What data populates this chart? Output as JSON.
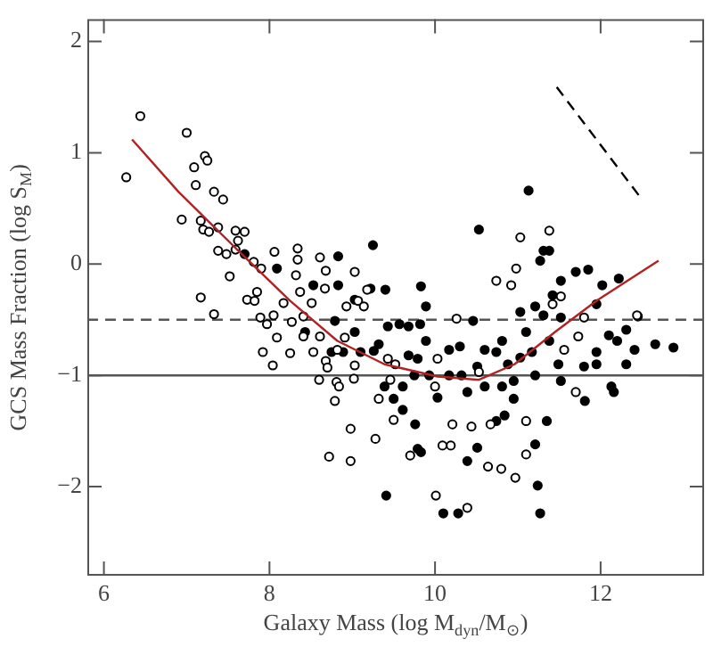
{
  "chart_data": {
    "type": "scatter",
    "xlabel": "Galaxy Mass (log M$_{dyn}$/M$_{⊙}$)",
    "ylabel": "GCS Mass Fraction (log S$_{M}$)",
    "xlim": [
      5.8,
      13.25
    ],
    "ylim": [
      -2.8,
      2.2
    ],
    "xticks": [
      6,
      8,
      10,
      12
    ],
    "yticks": [
      -2,
      -1,
      0,
      1,
      2
    ],
    "grid": false,
    "legend": false,
    "ref_lines": [
      {
        "axis": "y",
        "value": -0.5,
        "color": "#555555",
        "line_style": "dashed"
      },
      {
        "axis": "y",
        "value": -1,
        "color": "#555555",
        "line_style": "solid"
      }
    ],
    "series": [
      {
        "marker": "circle",
        "color": "#000000",
        "x": [
          6.27,
          6.44,
          7.0,
          6.94,
          7.09,
          7.11,
          7.22,
          7.25,
          7.17,
          7.2,
          7.27,
          7.33,
          7.44,
          7.38,
          7.38,
          7.48,
          7.59,
          7.59,
          7.7,
          7.62,
          7.17,
          7.33,
          7.52,
          7.73,
          7.82,
          7.85,
          7.81,
          7.9,
          7.89,
          7.97,
          8.06,
          8.05,
          8.09,
          7.92,
          8.04,
          8.17,
          8.25,
          8.27,
          8.34,
          8.34,
          8.32,
          8.37,
          8.41,
          8.41,
          8.53,
          8.51,
          8.61,
          8.68,
          8.67,
          8.61,
          8.68,
          8.7,
          8.6,
          8.81,
          8.79,
          8.84,
          8.72,
          8.98,
          8.98,
          9.03,
          9.03,
          9.02,
          9.28,
          9.32,
          9.43,
          9.46,
          9.52,
          9.5,
          9.07,
          9.14,
          9.18,
          8.93,
          8.82,
          8.91,
          9.7,
          10.0,
          10.03,
          10.09,
          10.19,
          10.01,
          10.21,
          10.26,
          10.39,
          10.44,
          10.74,
          10.64,
          10.67,
          10.8,
          10.92,
          10.97,
          11.03,
          10.98,
          11.1,
          11.38,
          11.42,
          11.52,
          11.56,
          11.7,
          11.73,
          11.8,
          12.44,
          11.1,
          10.53
        ],
        "values": [
          0.78,
          1.33,
          1.18,
          0.4,
          0.87,
          0.71,
          0.97,
          0.93,
          0.39,
          0.31,
          0.29,
          0.65,
          0.58,
          0.33,
          0.12,
          0.09,
          0.13,
          0.3,
          0.29,
          0.21,
          -0.3,
          -0.45,
          -0.11,
          -0.32,
          -0.33,
          -0.25,
          0.02,
          -0.04,
          -0.48,
          -0.54,
          0.11,
          -0.46,
          -0.66,
          -0.79,
          -0.91,
          -0.35,
          -0.8,
          -0.52,
          0.14,
          0.04,
          -0.1,
          -0.25,
          -0.47,
          -0.65,
          -0.79,
          -0.35,
          0.06,
          -0.06,
          -0.22,
          -0.65,
          -0.87,
          -0.93,
          -1.04,
          -1.06,
          -1.23,
          -1.1,
          -1.73,
          -1.48,
          -1.77,
          -0.07,
          -0.91,
          -1.03,
          -1.57,
          -1.21,
          -0.85,
          -1.04,
          -0.9,
          -1.4,
          -0.33,
          -0.38,
          -0.23,
          -0.38,
          -0.77,
          -0.66,
          -1.72,
          -1.1,
          -0.85,
          -1.63,
          -1.63,
          -2.08,
          -1.44,
          -0.49,
          -2.19,
          -1.46,
          -0.15,
          -1.82,
          -1.44,
          -1.84,
          -0.19,
          -1.92,
          0.24,
          -0.04,
          -1.71,
          0.3,
          -0.36,
          -0.29,
          -0.77,
          -1.15,
          -0.65,
          -0.48,
          -0.46,
          -1.41,
          -0.97
        ]
      },
      {
        "marker": "circle",
        "color": "#000000",
        "x": [
          7.7,
          8.09,
          8.53,
          8.83,
          9.25,
          8.83,
          8.79,
          8.43,
          8.75,
          9.03,
          9.22,
          9.4,
          9.43,
          9.57,
          9.68,
          9.82,
          9.83,
          9.89,
          9.26,
          9.39,
          9.5,
          9.61,
          9.68,
          9.79,
          9.89,
          9.93,
          10.03,
          10.17,
          10.3,
          10.32,
          10.39,
          10.46,
          10.51,
          10.53,
          10.6,
          10.74,
          10.81,
          10.88,
          10.95,
          11.03,
          11.1,
          11.13,
          11.17,
          11.21,
          11.27,
          11.31,
          11.38,
          11.21,
          11.31,
          11.42,
          11.52,
          11.7,
          11.85,
          12.02,
          12.22,
          11.95,
          12.1,
          12.2,
          12.31,
          12.41,
          12.45,
          12.66,
          12.88,
          11.81,
          12.13,
          12.16,
          11.52,
          11.35,
          11.21,
          11.24,
          11.27,
          10.39,
          10.51,
          10.28,
          10.1,
          9.41,
          9.79,
          9.83,
          9.76,
          10.74,
          10.84,
          10.95,
          11.38,
          11.49,
          11.52,
          11.8,
          11.95,
          12.31,
          11.95,
          11.03,
          10.81,
          10.6,
          10.17,
          9.61,
          9.75,
          9.32,
          9.1,
          9.03,
          8.89
        ],
        "values": [
          0.09,
          -0.04,
          -0.19,
          0.07,
          0.17,
          -0.19,
          -0.51,
          -0.61,
          -0.79,
          -0.32,
          -0.22,
          -0.23,
          -0.56,
          -0.54,
          -0.56,
          -0.54,
          -0.2,
          -0.38,
          -0.78,
          -1.1,
          -1.21,
          -1.31,
          -0.82,
          -0.85,
          -0.69,
          -1.0,
          -1.2,
          -0.77,
          -0.74,
          -1.0,
          -1.15,
          -0.51,
          -0.92,
          0.31,
          -0.77,
          -0.79,
          -0.69,
          -0.9,
          -1.05,
          -0.43,
          -0.61,
          0.66,
          -0.79,
          -1.0,
          0.03,
          0.12,
          0.12,
          -0.38,
          -0.46,
          -0.28,
          -0.15,
          -0.07,
          -0.05,
          -0.19,
          -0.13,
          -0.36,
          -0.64,
          -0.69,
          -0.59,
          -0.77,
          -0.47,
          -0.72,
          -0.75,
          -1.23,
          -1.1,
          -1.15,
          -1.05,
          -1.41,
          -1.62,
          -1.99,
          -2.24,
          -1.77,
          -1.65,
          -2.24,
          -2.24,
          -2.08,
          -1.66,
          -1.69,
          -1.44,
          -1.41,
          -1.36,
          -1.21,
          -0.69,
          -0.9,
          -0.48,
          -0.92,
          -0.9,
          -0.9,
          -0.79,
          -0.84,
          -1.1,
          -1.1,
          -1.0,
          -1.1,
          -1.0,
          -0.72,
          -0.79,
          -0.61,
          -0.79
        ]
      },
      {
        "type": "line",
        "marker": "none",
        "line_style": "solid",
        "color": "#b22222",
        "x": [
          6.34,
          6.9,
          7.61,
          8.25,
          8.82,
          9.39,
          10.03,
          10.53,
          10.96,
          11.45,
          11.95,
          12.7
        ],
        "values": [
          1.12,
          0.65,
          0.13,
          -0.33,
          -0.69,
          -0.9,
          -1.01,
          -1.04,
          -0.9,
          -0.61,
          -0.33,
          0.03
        ]
      },
      {
        "type": "line",
        "marker": "none",
        "line_style": "dashed",
        "color": "#000000",
        "x": [
          11.47,
          12.47
        ],
        "values": [
          1.59,
          0.61
        ]
      }
    ]
  }
}
